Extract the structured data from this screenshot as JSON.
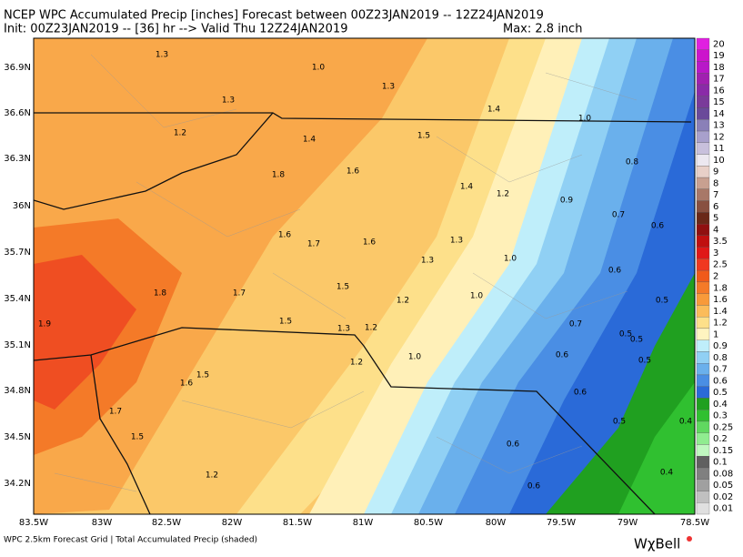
{
  "header": {
    "title": "NCEP WPC Accumulated Precip [inches] Forecast between 00Z23JAN2019 -- 12Z24JAN2019",
    "init": "Init: 00Z23JAN2019 -- [36] hr --> Valid Thu 12Z24JAN2019",
    "max": "Max: 2.8 inch"
  },
  "map": {
    "lat_labels": [
      "36.9N",
      "36.6N",
      "36.3N",
      "36N",
      "35.7N",
      "35.4N",
      "35.1N",
      "34.8N",
      "34.5N",
      "34.2N"
    ],
    "lon_labels": [
      "83.5W",
      "83W",
      "82.5W",
      "82W",
      "81.5W",
      "81W",
      "80.5W",
      "80W",
      "79.5W",
      "79W",
      "78.5W"
    ],
    "contour_labels": [
      "1.3",
      "1.0",
      "1.3",
      "1.3",
      "1.4",
      "1.0",
      "1.2",
      "1.5",
      "1.4",
      "0.8",
      "1.8",
      "1.6",
      "1.4",
      "1.2",
      "0.9",
      "0.7",
      "0.6",
      "1.6",
      "1.7",
      "1.6",
      "1.3",
      "1.0",
      "1.3",
      "0.6",
      "1.8",
      "1.7",
      "1.5",
      "1.0",
      "1.2",
      "0.5",
      "0.7",
      "1.9",
      "1.5",
      "1.3",
      "1.2",
      "0.5",
      "0.5",
      "0.6",
      "1.0",
      "1.2",
      "0.5",
      "1.5",
      "1.6",
      "0.6",
      "1.7",
      "0.5",
      "0.4",
      "1.5",
      "0.6",
      "0.4",
      "1.2",
      "0.6"
    ]
  },
  "colorbar": {
    "labels": [
      "20",
      "19",
      "18",
      "17",
      "16",
      "15",
      "14",
      "13",
      "12",
      "11",
      "10",
      "9",
      "8",
      "7",
      "6",
      "5",
      "4",
      "3.5",
      "3",
      "2.5",
      "2",
      "1.8",
      "1.6",
      "1.4",
      "1.2",
      "1",
      "0.9",
      "0.8",
      "0.7",
      "0.6",
      "0.5",
      "0.4",
      "0.3",
      "0.25",
      "0.2",
      "0.15",
      "0.1",
      "0.08",
      "0.05",
      "0.02",
      "0.01"
    ],
    "colors": [
      "#e020e0",
      "#cc14cc",
      "#b818c8",
      "#a020b0",
      "#8a2aa8",
      "#7a3a9a",
      "#6a4a9a",
      "#8a80b8",
      "#a8a0cc",
      "#c8c0dc",
      "#ece8f0",
      "#e8d0c8",
      "#c8a090",
      "#a87868",
      "#885040",
      "#6a2818",
      "#901010",
      "#c01010",
      "#e01818",
      "#f03820",
      "#f05a1a",
      "#f47a28",
      "#f89a3a",
      "#fbbc5a",
      "#fde08a",
      "#fff4c0",
      "#bfeefa",
      "#90d0f4",
      "#6ab0ec",
      "#4a8ee4",
      "#2a6ad8",
      "#20a020",
      "#30c030",
      "#60d860",
      "#90ec90",
      "#c0f8c0",
      "#606060",
      "#808080",
      "#a0a0a0",
      "#c0c0c0",
      "#e0e0e0"
    ]
  },
  "footer": {
    "left": "WPC 2.5km Forecast Grid | Total Accumulated Precip (shaded)",
    "brand": "WχBell"
  }
}
